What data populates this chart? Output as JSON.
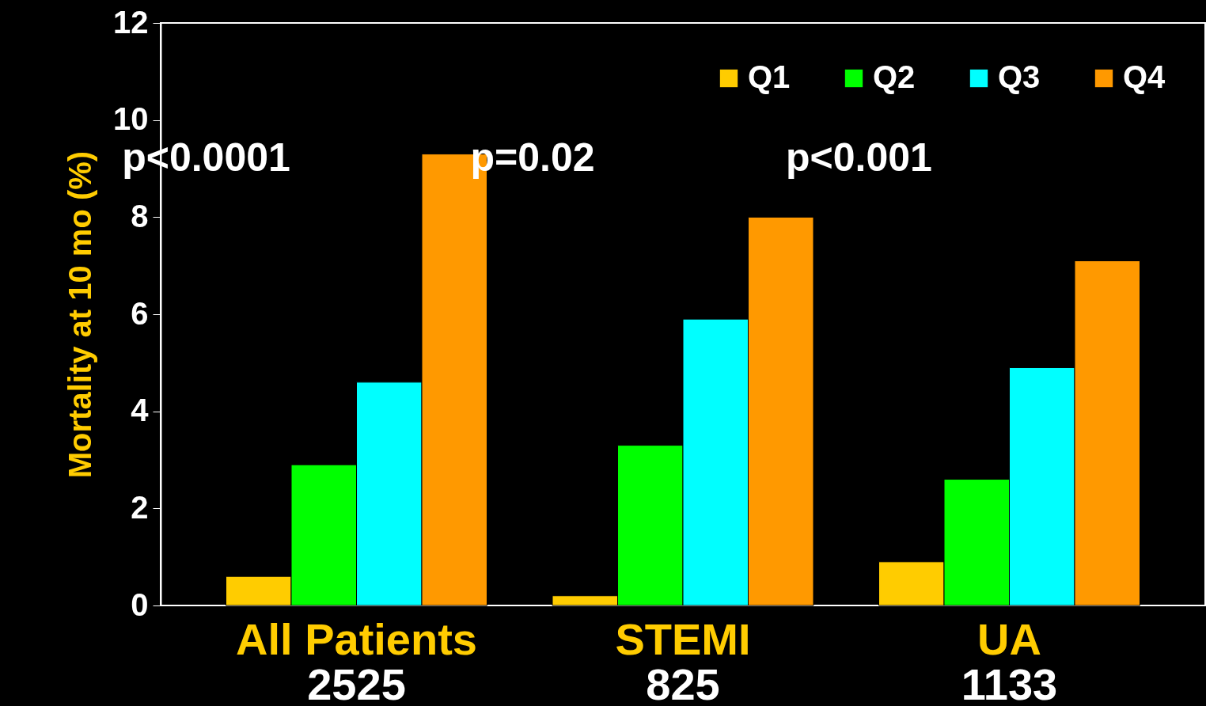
{
  "chart_data": {
    "type": "bar",
    "ylabel": "Mortality at 10 mo (%)",
    "categories": [
      "All Patients",
      "STEMI",
      "UA"
    ],
    "series": [
      {
        "name": "Q1",
        "color": "#ffcc00",
        "values": [
          0.6,
          0.2,
          0.9
        ]
      },
      {
        "name": "Q2",
        "color": "#00ff00",
        "values": [
          2.9,
          3.3,
          2.6
        ]
      },
      {
        "name": "Q3",
        "color": "#00ffff",
        "values": [
          4.6,
          5.9,
          4.9
        ]
      },
      {
        "name": "Q4",
        "color": "#ff9900",
        "values": [
          9.3,
          8.0,
          7.1
        ]
      }
    ],
    "ylim": [
      0,
      12
    ],
    "yticks": [
      0,
      2,
      4,
      6,
      8,
      10,
      12
    ],
    "grid": false,
    "legend": "top right",
    "annotations": [
      "p<0.0001",
      "p=0.02",
      "p<0.001",
      "2525",
      "825",
      "1133"
    ]
  }
}
